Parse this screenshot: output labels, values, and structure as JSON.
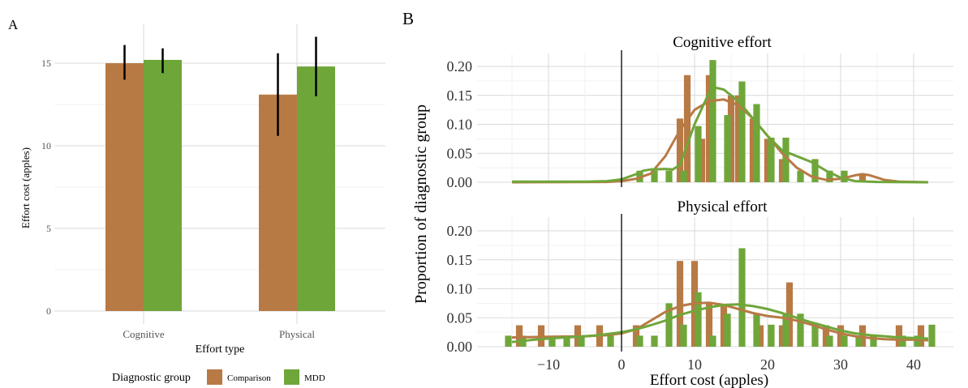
{
  "panels": {
    "a": "A",
    "b": "B"
  },
  "colors": {
    "comparison": "#B87A45",
    "mdd": "#6FA63A",
    "grid": "#D9D9D9",
    "axis_text": "#555555",
    "vline": "#000000"
  },
  "chart_data": [
    {
      "type": "bar",
      "panel": "A",
      "categories": [
        "Cognitive",
        "Physical"
      ],
      "series": [
        {
          "name": "Comparison",
          "values": [
            15.0,
            13.1
          ],
          "error_low": [
            14.0,
            10.6
          ],
          "error_high": [
            16.1,
            15.6
          ]
        },
        {
          "name": "MDD",
          "values": [
            15.2,
            14.8
          ],
          "error_low": [
            14.4,
            13.0
          ],
          "error_high": [
            15.9,
            16.6
          ]
        }
      ],
      "xlabel": "Effort type",
      "ylabel": "Effort cost (apples)",
      "ylim": [
        0,
        16.5
      ],
      "yticks": [
        0,
        5,
        10,
        15
      ],
      "grid": true,
      "legend": {
        "title": "Diagnostic group",
        "position": "bottom",
        "entries": [
          "Comparison",
          "MDD"
        ]
      }
    },
    {
      "type": "bar",
      "panel": "B",
      "facets": [
        {
          "title": "Cognitive effort",
          "comparison_bins": [
            {
              "x": 8,
              "y": 0.11
            },
            {
              "x": 9,
              "y": 0.185
            },
            {
              "x": 11,
              "y": 0.075
            },
            {
              "x": 12,
              "y": 0.185
            },
            {
              "x": 15,
              "y": 0.15
            },
            {
              "x": 16,
              "y": 0.15
            },
            {
              "x": 18,
              "y": 0.11
            },
            {
              "x": 20,
              "y": 0.075
            },
            {
              "x": 22,
              "y": 0.04
            },
            {
              "x": 33,
              "y": 0.015
            }
          ],
          "mdd_bins": [
            {
              "x": 2.5,
              "y": 0.02
            },
            {
              "x": 4.5,
              "y": 0.02
            },
            {
              "x": 6.5,
              "y": 0.02
            },
            {
              "x": 8.5,
              "y": 0.02
            },
            {
              "x": 10.5,
              "y": 0.097
            },
            {
              "x": 12.5,
              "y": 0.211
            },
            {
              "x": 14.5,
              "y": 0.116
            },
            {
              "x": 16.5,
              "y": 0.174
            },
            {
              "x": 18.5,
              "y": 0.135
            },
            {
              "x": 20.5,
              "y": 0.077
            },
            {
              "x": 22.5,
              "y": 0.077
            },
            {
              "x": 24.5,
              "y": 0.02
            },
            {
              "x": 26.5,
              "y": 0.04
            },
            {
              "x": 28.5,
              "y": 0.02
            },
            {
              "x": 30.5,
              "y": 0.02
            }
          ],
          "comparison_density": [
            [
              -15,
              0
            ],
            [
              -2,
              0.0005
            ],
            [
              0,
              0.002
            ],
            [
              2,
              0.006
            ],
            [
              4,
              0.015
            ],
            [
              6,
              0.045
            ],
            [
              8,
              0.09
            ],
            [
              10,
              0.125
            ],
            [
              12,
              0.14
            ],
            [
              14,
              0.143
            ],
            [
              16,
              0.133
            ],
            [
              18,
              0.11
            ],
            [
              20,
              0.08
            ],
            [
              22,
              0.05
            ],
            [
              24,
              0.025
            ],
            [
              26,
              0.01
            ],
            [
              28,
              0.004
            ],
            [
              30,
              0.006
            ],
            [
              32,
              0.012
            ],
            [
              33,
              0.014
            ],
            [
              34,
              0.012
            ],
            [
              36,
              0.004
            ],
            [
              38,
              0.001
            ],
            [
              42,
              0
            ]
          ],
          "mdd_density": [
            [
              -15,
              0.001
            ],
            [
              -5,
              0.001
            ],
            [
              -2,
              0.002
            ],
            [
              0,
              0.005
            ],
            [
              2,
              0.014
            ],
            [
              3,
              0.02
            ],
            [
              4,
              0.022
            ],
            [
              6,
              0.023
            ],
            [
              7,
              0.022
            ],
            [
              8,
              0.03
            ],
            [
              10,
              0.1
            ],
            [
              12,
              0.155
            ],
            [
              13,
              0.163
            ],
            [
              14,
              0.16
            ],
            [
              16,
              0.14
            ],
            [
              18,
              0.11
            ],
            [
              20,
              0.08
            ],
            [
              22,
              0.055
            ],
            [
              24,
              0.045
            ],
            [
              26,
              0.035
            ],
            [
              28,
              0.02
            ],
            [
              30,
              0.008
            ],
            [
              32,
              0.002
            ],
            [
              35,
              0.0005
            ],
            [
              42,
              0
            ]
          ]
        },
        {
          "title": "Physical effort",
          "comparison_bins": [
            {
              "x": -14,
              "y": 0.037
            },
            {
              "x": -11,
              "y": 0.037
            },
            {
              "x": -6,
              "y": 0.037
            },
            {
              "x": -3,
              "y": 0.037
            },
            {
              "x": 2,
              "y": 0.037
            },
            {
              "x": 8,
              "y": 0.148
            },
            {
              "x": 10,
              "y": 0.148
            },
            {
              "x": 12,
              "y": 0.074
            },
            {
              "x": 14,
              "y": 0.074
            },
            {
              "x": 19,
              "y": 0.037
            },
            {
              "x": 22,
              "y": 0.037
            },
            {
              "x": 23,
              "y": 0.111
            },
            {
              "x": 28,
              "y": 0.037
            },
            {
              "x": 30,
              "y": 0.037
            },
            {
              "x": 33,
              "y": 0.037
            },
            {
              "x": 38,
              "y": 0.037
            },
            {
              "x": 41,
              "y": 0.037
            }
          ],
          "mdd_bins": [
            {
              "x": -15.5,
              "y": 0.019
            },
            {
              "x": -13.5,
              "y": 0.019
            },
            {
              "x": -9.5,
              "y": 0.019
            },
            {
              "x": -7.5,
              "y": 0.019
            },
            {
              "x": -5.5,
              "y": 0.019
            },
            {
              "x": -1.5,
              "y": 0.019
            },
            {
              "x": 2.5,
              "y": 0.019
            },
            {
              "x": 4.5,
              "y": 0.019
            },
            {
              "x": 6.5,
              "y": 0.075
            },
            {
              "x": 8.5,
              "y": 0.038
            },
            {
              "x": 10.5,
              "y": 0.094
            },
            {
              "x": 12.5,
              "y": 0.019
            },
            {
              "x": 14.5,
              "y": 0.057
            },
            {
              "x": 16.5,
              "y": 0.17
            },
            {
              "x": 18.5,
              "y": 0.057
            },
            {
              "x": 20.5,
              "y": 0.038
            },
            {
              "x": 22.5,
              "y": 0.057
            },
            {
              "x": 24.5,
              "y": 0.057
            },
            {
              "x": 26.5,
              "y": 0.038
            },
            {
              "x": 28.5,
              "y": 0.019
            },
            {
              "x": 30.5,
              "y": 0.019
            },
            {
              "x": 32.5,
              "y": 0.019
            },
            {
              "x": 34.5,
              "y": 0.019
            },
            {
              "x": 38.5,
              "y": 0.019
            },
            {
              "x": 40.5,
              "y": 0.019
            },
            {
              "x": 42.5,
              "y": 0.038
            }
          ],
          "comparison_density": [
            [
              -15,
              0.016
            ],
            [
              -10,
              0.017
            ],
            [
              -5,
              0.018
            ],
            [
              -2,
              0.02
            ],
            [
              0,
              0.023
            ],
            [
              2,
              0.03
            ],
            [
              4,
              0.045
            ],
            [
              6,
              0.06
            ],
            [
              8,
              0.07
            ],
            [
              10,
              0.075
            ],
            [
              12,
              0.076
            ],
            [
              14,
              0.072
            ],
            [
              16,
              0.065
            ],
            [
              18,
              0.058
            ],
            [
              20,
              0.053
            ],
            [
              22,
              0.05
            ],
            [
              24,
              0.045
            ],
            [
              26,
              0.038
            ],
            [
              28,
              0.03
            ],
            [
              30,
              0.023
            ],
            [
              32,
              0.018
            ],
            [
              34,
              0.015
            ],
            [
              36,
              0.013
            ],
            [
              38,
              0.012
            ],
            [
              40,
              0.012
            ],
            [
              42,
              0.011
            ]
          ],
          "mdd_density": [
            [
              -15,
              0.008
            ],
            [
              -12,
              0.012
            ],
            [
              -9,
              0.015
            ],
            [
              -6,
              0.017
            ],
            [
              -3,
              0.02
            ],
            [
              0,
              0.025
            ],
            [
              2,
              0.03
            ],
            [
              4,
              0.037
            ],
            [
              6,
              0.045
            ],
            [
              8,
              0.055
            ],
            [
              10,
              0.062
            ],
            [
              12,
              0.068
            ],
            [
              14,
              0.072
            ],
            [
              16,
              0.073
            ],
            [
              18,
              0.07
            ],
            [
              20,
              0.065
            ],
            [
              22,
              0.058
            ],
            [
              24,
              0.05
            ],
            [
              26,
              0.042
            ],
            [
              28,
              0.035
            ],
            [
              30,
              0.028
            ],
            [
              32,
              0.023
            ],
            [
              34,
              0.02
            ],
            [
              36,
              0.018
            ],
            [
              38,
              0.016
            ],
            [
              40,
              0.015
            ],
            [
              42,
              0.014
            ]
          ]
        }
      ],
      "xlabel": "Effort cost (apples)",
      "ylabel": "Proportion of diagnostic group",
      "xlim": [
        -17,
        43
      ],
      "ylim": [
        0,
        0.22
      ],
      "xticks": [
        -10,
        0,
        10,
        20,
        30,
        40
      ],
      "yticks": [
        0,
        0.05,
        0.1,
        0.15,
        0.2
      ],
      "ytick_labels": [
        "0.00",
        "0.05",
        "0.10",
        "0.15",
        "0.20"
      ],
      "xtick_labels": [
        "−10",
        "0",
        "10",
        "20",
        "30",
        "40"
      ],
      "vline_x": 0,
      "grid": true
    }
  ]
}
